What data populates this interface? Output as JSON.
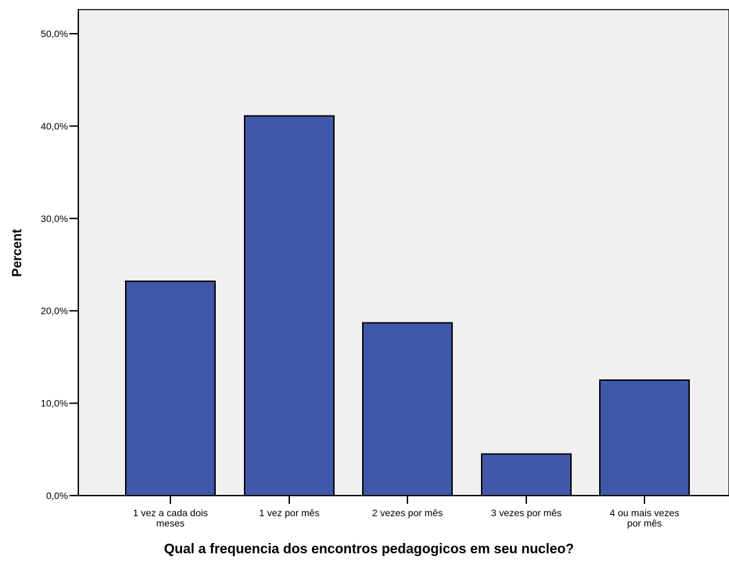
{
  "chart_data": {
    "type": "bar",
    "title": "",
    "xlabel": "Qual a frequencia dos encontros pedagogicos em seu nucleo?",
    "ylabel": "Percent",
    "categories": [
      [
        "1 vez a cada dois",
        "meses"
      ],
      [
        "1 vez por mês"
      ],
      [
        "2 vezes por mês"
      ],
      [
        "3 vezes por mês"
      ],
      [
        "4 ou mais vezes",
        "por mês"
      ]
    ],
    "values": [
      23.2,
      41.1,
      18.7,
      4.5,
      12.5
    ],
    "ylim": [
      0,
      50
    ],
    "yticks": [
      0,
      10,
      20,
      30,
      40,
      50
    ],
    "ytick_labels": [
      "0,0%",
      "10,0%",
      "20,0%",
      "30,0%",
      "40,0%",
      "50,0%"
    ],
    "grid": false,
    "colors": {
      "bar_fill": "#3F58AA",
      "bar_stroke": "#000000",
      "plot_background": "#F0F0F0"
    }
  }
}
